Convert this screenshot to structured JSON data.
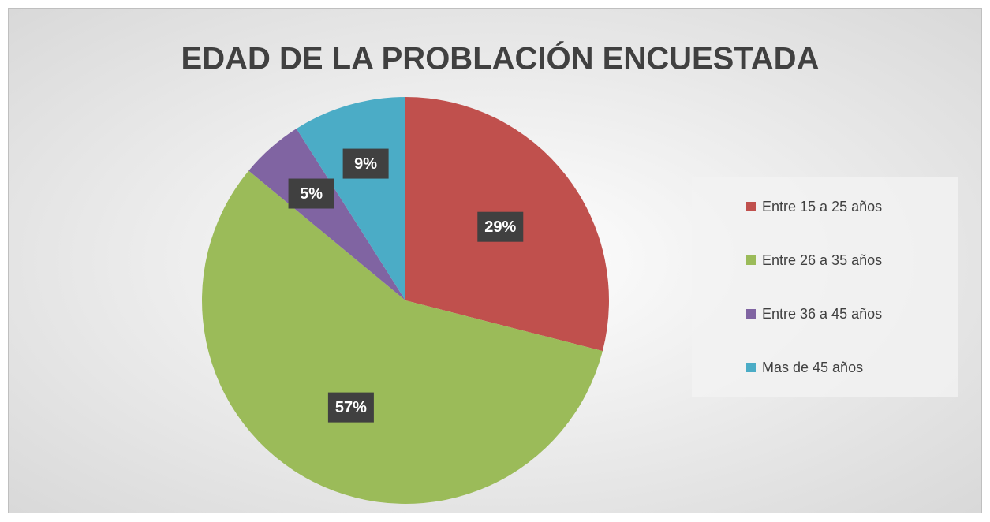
{
  "chart_data": {
    "type": "pie",
    "title": "EDAD DE LA PROBLACIÓN ENCUESTADA",
    "categories": [
      "Entre 15 a 25 años",
      "Entre 26 a 35 años",
      "Entre 36 a 45 años",
      "Mas de 45 años"
    ],
    "values": [
      29,
      57,
      5,
      9
    ],
    "value_labels": [
      "29%",
      "57%",
      "5%",
      "9%"
    ],
    "colors": [
      "#c0504d",
      "#9bbb59",
      "#8064a2",
      "#4bacc6"
    ],
    "legend": "right"
  }
}
